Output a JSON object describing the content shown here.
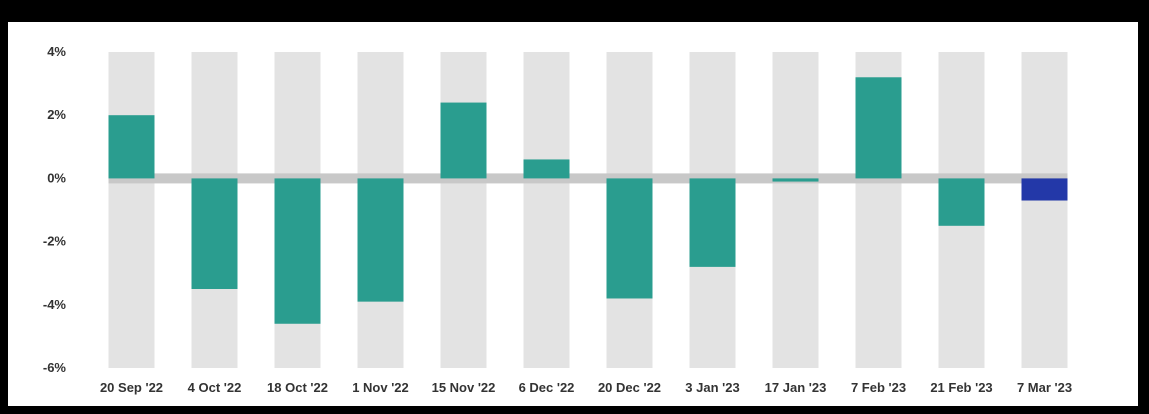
{
  "chart_data": {
    "type": "bar",
    "title": "",
    "xlabel": "",
    "ylabel": "",
    "categories": [
      "20 Sep '22",
      "4 Oct '22",
      "18 Oct '22",
      "1 Nov '22",
      "15 Nov '22",
      "6 Dec '22",
      "20 Dec '22",
      "3 Jan '23",
      "17 Jan '23",
      "7 Feb '23",
      "21 Feb '23",
      "7 Mar '23"
    ],
    "values": [
      2.0,
      -3.5,
      -4.6,
      -3.9,
      2.4,
      0.6,
      -3.8,
      -2.8,
      -0.1,
      3.2,
      -1.5,
      -0.7
    ],
    "bar_colors": [
      "#2a9d8f",
      "#2a9d8f",
      "#2a9d8f",
      "#2a9d8f",
      "#2a9d8f",
      "#2a9d8f",
      "#2a9d8f",
      "#2a9d8f",
      "#2a9d8f",
      "#2a9d8f",
      "#2a9d8f",
      "#2338a8"
    ],
    "y_ticks": [
      4,
      2,
      0,
      -2,
      -4,
      -6
    ],
    "y_tick_labels": [
      "4%",
      "2%",
      "0%",
      "-2%",
      "-4%",
      "-6%"
    ],
    "ylim": [
      -6,
      4
    ],
    "grid": false,
    "background_band_color": "#e3e3e3",
    "zero_line_color": "#c8c8c8"
  }
}
